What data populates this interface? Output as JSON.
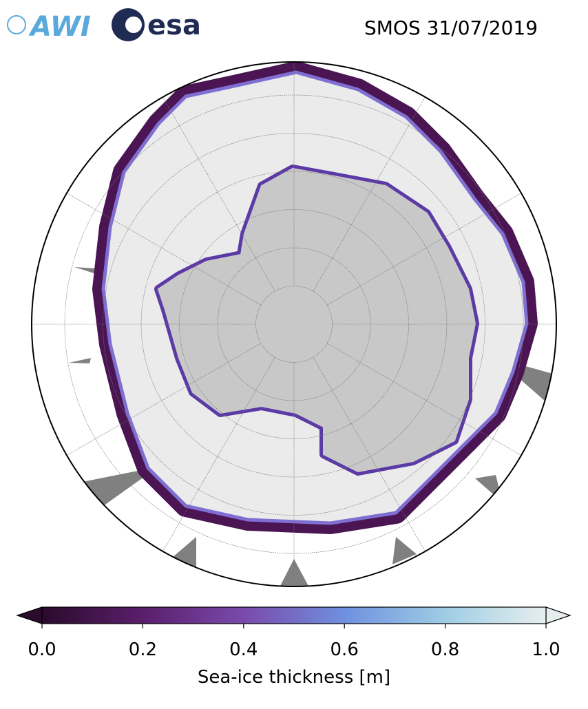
{
  "logos": {
    "awi": "AWI",
    "esa": "esa"
  },
  "title": "SMOS 31/07/2019",
  "colorbar": {
    "label": "Sea-ice thickness [m]",
    "lim": [
      0,
      1
    ],
    "ticks": [
      {
        "value": 0,
        "label": "0.0"
      },
      {
        "value": 0.2,
        "label": "0.2"
      },
      {
        "value": 0.4,
        "label": "0.4"
      },
      {
        "value": 0.6,
        "label": "0.6"
      },
      {
        "value": 0.8,
        "label": "0.8"
      },
      {
        "value": 1,
        "label": "1.0"
      }
    ],
    "colors": [
      "#2b0a2c",
      "#5a1f6c",
      "#7a4aab",
      "#6f90df",
      "#9fcde4",
      "#e6efee"
    ]
  }
}
